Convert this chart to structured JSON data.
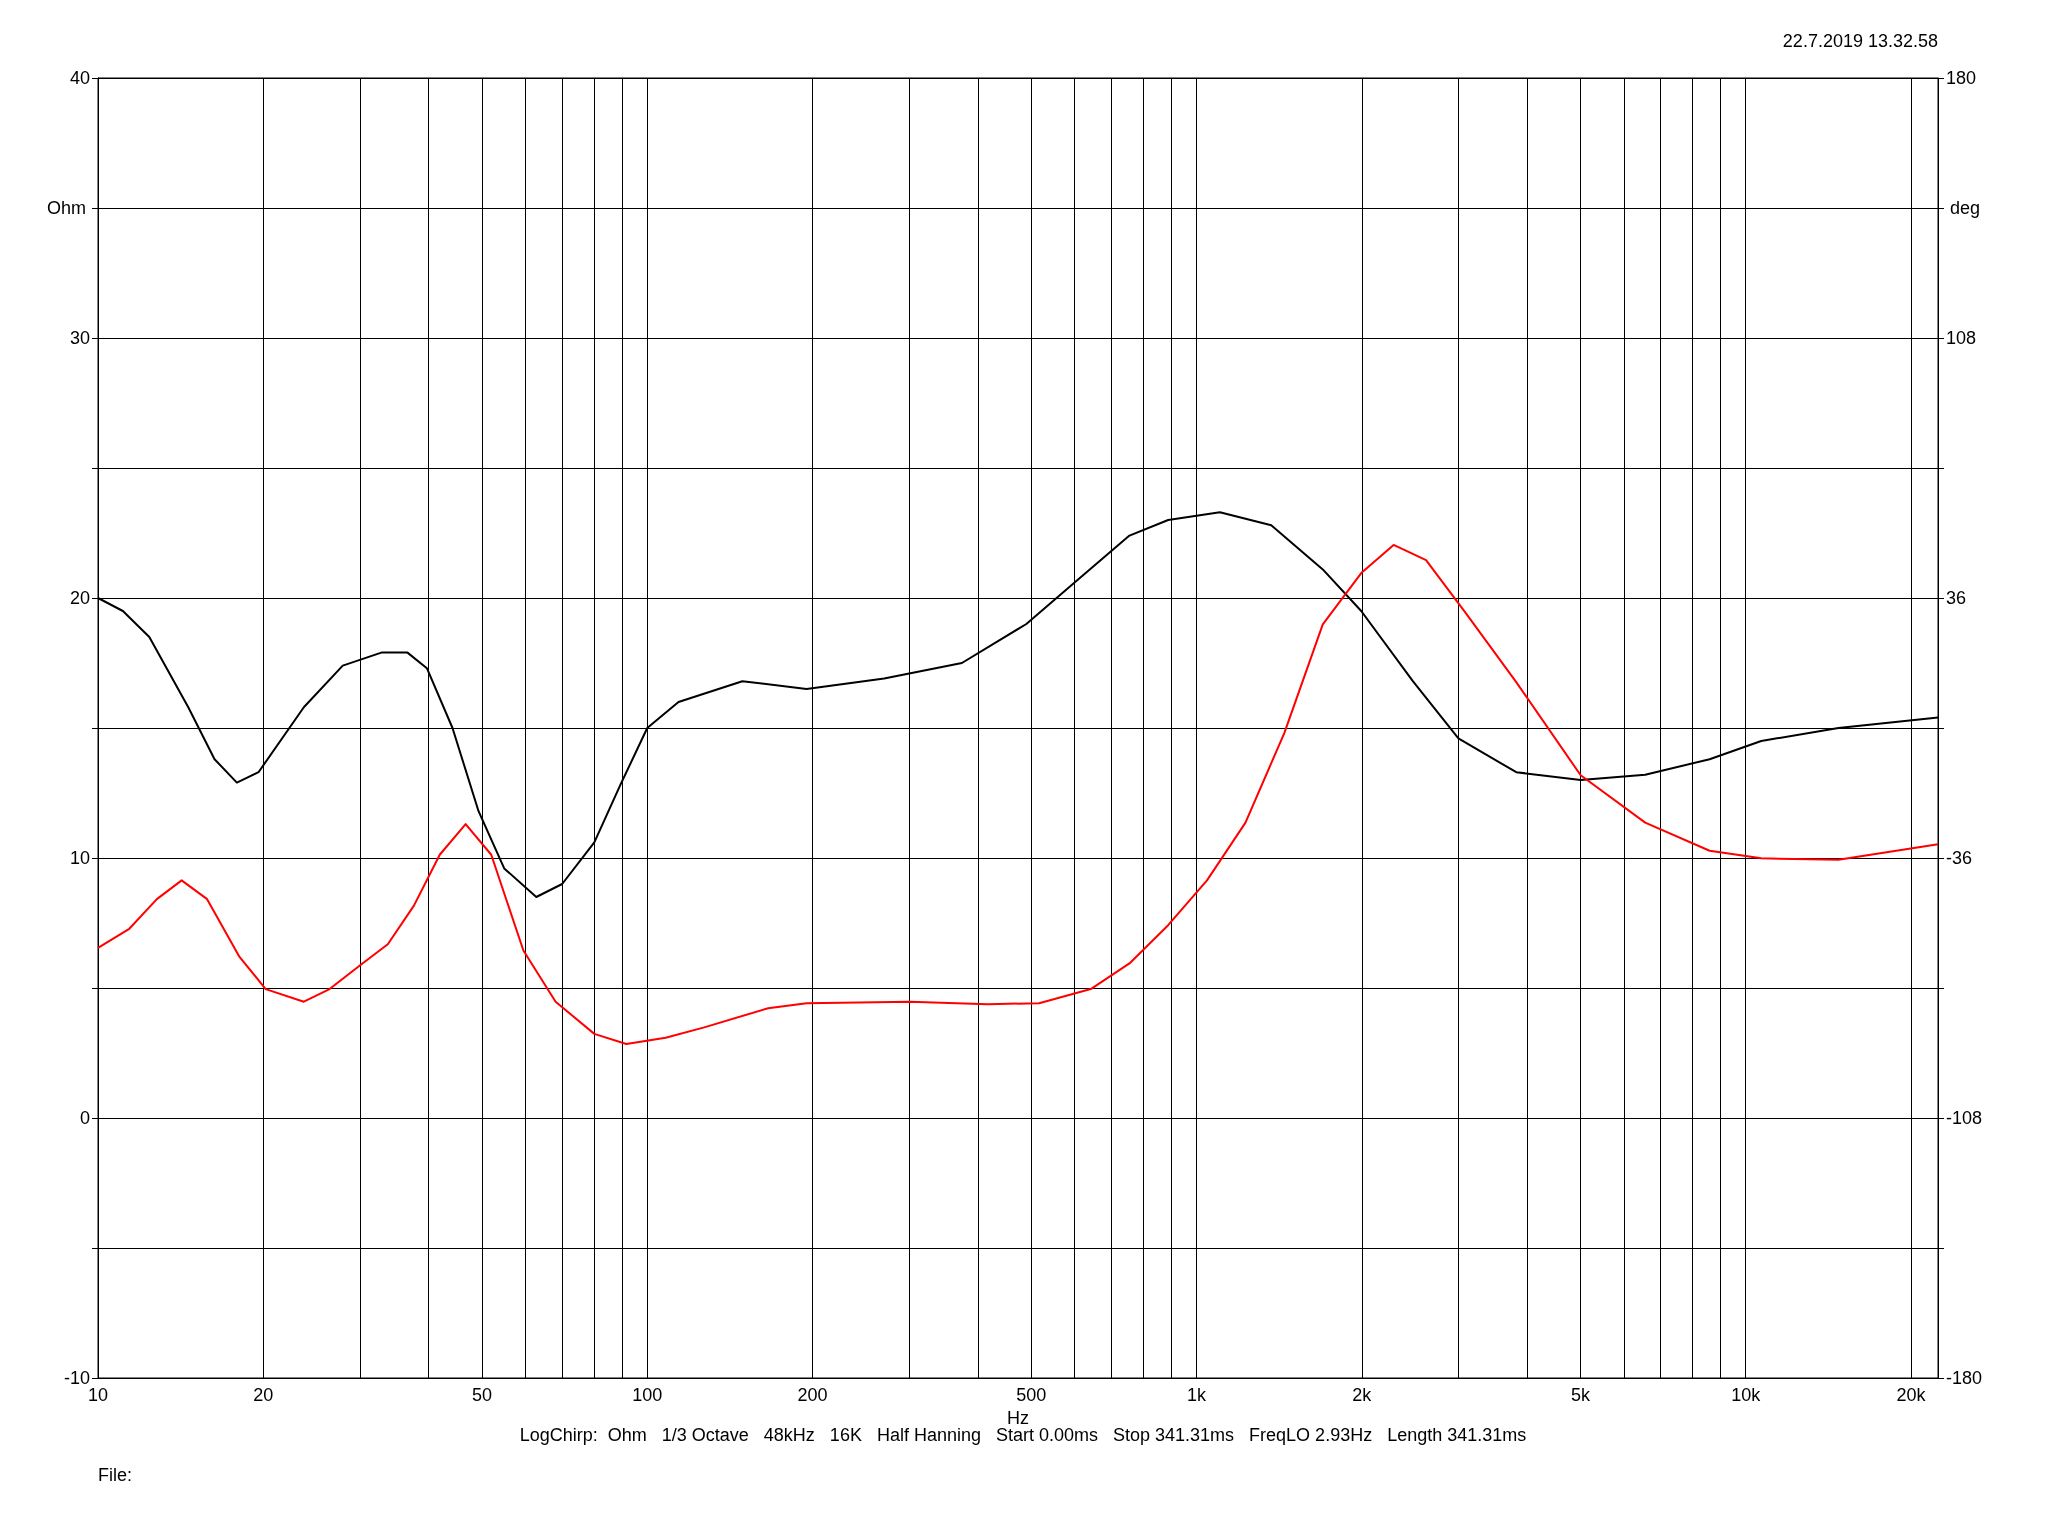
{
  "chart_data": {
    "type": "line",
    "xlabel": "Hz",
    "ylabel": "Ohm",
    "y2label": "deg",
    "log": "x",
    "grid": true,
    "marker": "none",
    "line_style": "solid",
    "annotations": [
      "22.7.2019 13.32.58",
      "LogChirp:  Ohm   1/3 Octave   48kHz   16K   Half Hanning   Start 0.00ms   Stop 341.31ms   FreqLO 2.93Hz   Length 341.31ms",
      "File:"
    ],
    "xlim": [
      10,
      22390
    ],
    "xticks": [
      10,
      {
        "value": 20,
        "label": "20"
      },
      {
        "value": 30,
        "label": null
      },
      {
        "value": 40,
        "label": null
      },
      50,
      {
        "value": 60,
        "label": null
      },
      {
        "value": 70,
        "label": null
      },
      {
        "value": 80,
        "label": null
      },
      {
        "value": 90,
        "label": null
      },
      100,
      {
        "value": 200,
        "label": "200"
      },
      {
        "value": 300,
        "label": null
      },
      {
        "value": 400,
        "label": null
      },
      500,
      {
        "value": 600,
        "label": null
      },
      {
        "value": 700,
        "label": null
      },
      {
        "value": 800,
        "label": null
      },
      {
        "value": 900,
        "label": null
      },
      {
        "value": 1000,
        "label": "1k"
      },
      {
        "value": 2000,
        "label": "2k"
      },
      {
        "value": 3000,
        "label": null
      },
      {
        "value": 4000,
        "label": null
      },
      {
        "value": 5000,
        "label": "5k"
      },
      {
        "value": 6000,
        "label": null
      },
      {
        "value": 7000,
        "label": null
      },
      {
        "value": 8000,
        "label": null
      },
      {
        "value": 9000,
        "label": null
      },
      {
        "value": 10000,
        "label": "10k"
      },
      {
        "value": 20000,
        "label": "20k"
      }
    ],
    "ylim": [
      -10,
      40
    ],
    "yticks": [
      -10,
      {
        "value": -5,
        "label": null
      },
      0,
      {
        "value": 5,
        "label": null
      },
      10,
      {
        "value": 15,
        "label": null
      },
      20,
      {
        "value": 25,
        "label": null
      },
      30,
      {
        "value": 35,
        "label": null
      },
      40
    ],
    "y2lim": [
      -180,
      180
    ],
    "y2ticks": [
      -180,
      {
        "value": -144,
        "label": null
      },
      -108,
      {
        "value": -72,
        "label": null
      },
      -36,
      {
        "value": 0,
        "label": null
      },
      36,
      {
        "value": 72,
        "label": null
      },
      108,
      {
        "value": 144,
        "label": null
      },
      180
    ],
    "series": [
      {
        "color": "#000000",
        "x": [
          10,
          11.1,
          12.4,
          14.6,
          16.3,
          17.9,
          19.6,
          23.7,
          27.9,
          32.8,
          36.6,
          39.7,
          44.2,
          49.3,
          54.9,
          62.8,
          70,
          80.1,
          89.3,
          100,
          114,
          149,
          195,
          270,
          374,
          490,
          608,
          755,
          888,
          1103,
          1368,
          1698,
          1995,
          2477,
          2998,
          3821,
          5006,
          6561,
          8595,
          10670,
          14750,
          22390
        ],
        "values": [
          20.0,
          19.5,
          18.5,
          15.8,
          13.8,
          12.9,
          13.3,
          15.8,
          17.4,
          17.9,
          17.9,
          17.3,
          15.0,
          11.8,
          9.6,
          8.5,
          9.0,
          10.6,
          12.8,
          15.0,
          16.0,
          16.8,
          16.5,
          16.9,
          17.5,
          19.0,
          20.7,
          22.4,
          23.0,
          23.3,
          22.8,
          21.1,
          19.5,
          16.8,
          14.6,
          13.3,
          13.0,
          13.2,
          13.8,
          14.5,
          15.0,
          15.4
        ]
      },
      {
        "color": "#ff0000",
        "axis": "y2",
        "x": [
          10,
          11.4,
          12.8,
          14.2,
          15.8,
          18.1,
          20.2,
          23.7,
          26.4,
          30.3,
          33.7,
          37.6,
          41.9,
          46.7,
          52.0,
          59.5,
          68.1,
          80.1,
          91.6,
          108,
          127,
          166,
          195,
          301,
          417,
          517,
          642,
          755,
          888,
          1045,
          1228,
          1445,
          1698,
          1995,
          2285,
          2618,
          3076,
          3821,
          5006,
          6561,
          8595,
          10670,
          14750,
          22390
        ],
        "values": [
          -60.9,
          -55.6,
          -47.4,
          -42.2,
          -47.4,
          -63.4,
          -72.3,
          -75.8,
          -72.3,
          -65.2,
          -59.9,
          -49.2,
          -35.1,
          -26.6,
          -35.1,
          -61.6,
          -75.8,
          -84.7,
          -87.5,
          -85.8,
          -82.9,
          -77.6,
          -76.2,
          -75.8,
          -76.5,
          -76.2,
          -72.3,
          -65.2,
          -54.6,
          -42.2,
          -26.2,
          -1.4,
          28.7,
          42.9,
          50.7,
          46.5,
          32.3,
          12.7,
          -13.1,
          -26.2,
          -34.0,
          -36.1,
          -36.5,
          -32.2
        ]
      }
    ]
  }
}
